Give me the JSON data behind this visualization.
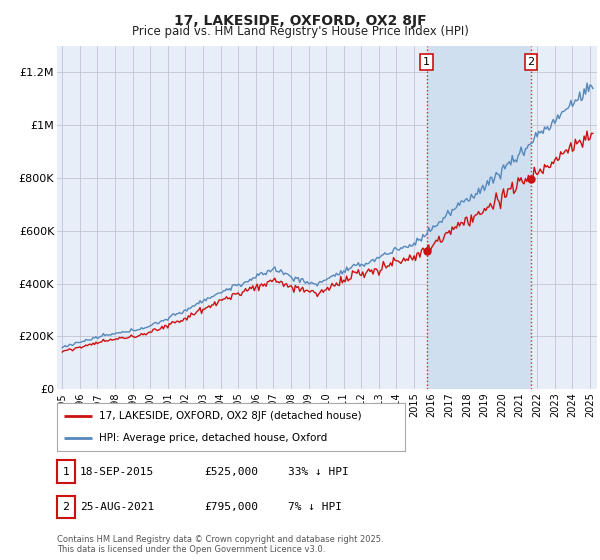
{
  "title": "17, LAKESIDE, OXFORD, OX2 8JF",
  "subtitle": "Price paid vs. HM Land Registry's House Price Index (HPI)",
  "background_color": "#ffffff",
  "plot_background": "#e8eef8",
  "highlight_color": "#d0dff0",
  "hpi_color": "#5588bb",
  "price_color": "#cc1111",
  "ylim": [
    0,
    1300000
  ],
  "yticks": [
    0,
    200000,
    400000,
    600000,
    800000,
    1000000,
    1200000
  ],
  "ytick_labels": [
    "£0",
    "£200K",
    "£400K",
    "£600K",
    "£800K",
    "£1M",
    "£1.2M"
  ],
  "xstart_year": 1995,
  "xend_year": 2025,
  "sale1_year": 2015.72,
  "sale1_price": 525000,
  "sale2_year": 2021.65,
  "sale2_price": 795000,
  "legend_price_label": "17, LAKESIDE, OXFORD, OX2 8JF (detached house)",
  "legend_hpi_label": "HPI: Average price, detached house, Oxford",
  "table_row1": [
    "1",
    "18-SEP-2015",
    "£525,000",
    "33% ↓ HPI"
  ],
  "table_row2": [
    "2",
    "25-AUG-2021",
    "£795,000",
    "7% ↓ HPI"
  ],
  "footer": "Contains HM Land Registry data © Crown copyright and database right 2025.\nThis data is licensed under the Open Government Licence v3.0."
}
